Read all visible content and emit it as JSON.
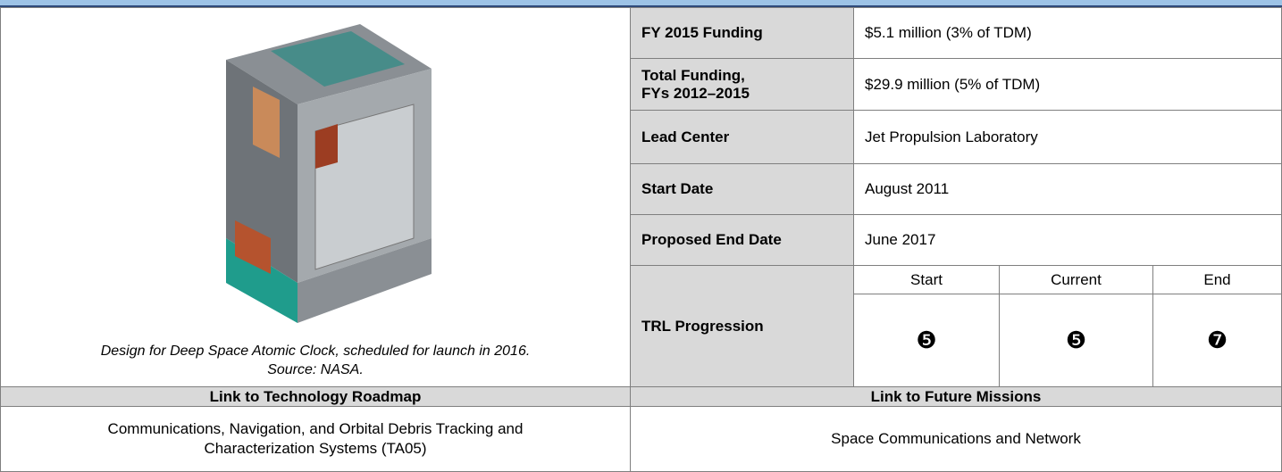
{
  "image": {
    "caption": [
      "Design for Deep Space Atomic Clock, scheduled for launch in 2016.",
      "Source: NASA."
    ]
  },
  "summary": {
    "rows": [
      {
        "label": "FY 2015 Funding",
        "value": "$5.1 million (3% of TDM)"
      },
      {
        "label": [
          "Total Funding,",
          "FYs 2012–2015"
        ],
        "value": "$29.9 million (5% of TDM)"
      },
      {
        "label": "Lead Center",
        "value": "Jet Propulsion Laboratory"
      },
      {
        "label": "Start Date",
        "value": "August 2011"
      },
      {
        "label": "Proposed End Date",
        "value": "June 2017"
      }
    ],
    "trl": {
      "label": "TRL Progression",
      "headers": [
        "Start",
        "Current",
        "End"
      ],
      "values": [
        "❺",
        "❺",
        "❼"
      ]
    }
  },
  "links": {
    "roadmap": {
      "header": "Link to Technology Roadmap",
      "value": [
        "Communications, Navigation, and Orbital Debris Tracking and",
        "Characterization Systems (TA05)"
      ]
    },
    "missions": {
      "header": "Link to Future Missions",
      "value": "Space Communications and Network"
    }
  }
}
